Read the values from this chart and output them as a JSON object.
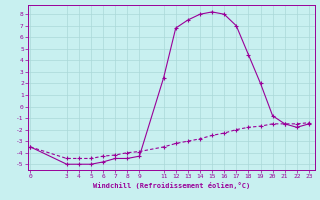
{
  "x": [
    0,
    3,
    4,
    5,
    6,
    7,
    8,
    9,
    11,
    12,
    13,
    14,
    15,
    16,
    17,
    18,
    19,
    20,
    21,
    22,
    23
  ],
  "y_curve": [
    -3.5,
    -5.0,
    -5.0,
    -5.0,
    -4.8,
    -4.5,
    -4.5,
    -4.3,
    2.5,
    6.8,
    7.5,
    8.0,
    8.2,
    8.0,
    7.0,
    4.5,
    2.0,
    -0.8,
    -1.5,
    -1.8,
    -1.5
  ],
  "y_line": [
    -3.5,
    -4.5,
    -4.5,
    -4.5,
    -4.3,
    -4.2,
    -4.0,
    -3.9,
    -3.5,
    -3.2,
    -3.0,
    -2.8,
    -2.5,
    -2.3,
    -2.0,
    -1.8,
    -1.7,
    -1.5,
    -1.5,
    -1.5,
    -1.4
  ],
  "line_color": "#990099",
  "bg_color": "#c8f0f0",
  "grid_color": "#aad8d8",
  "tick_color": "#990099",
  "xlabel": "Windchill (Refroidissement éolien,°C)",
  "yticks": [
    -5,
    -4,
    -3,
    -2,
    -1,
    0,
    1,
    2,
    3,
    4,
    5,
    6,
    7,
    8
  ],
  "xticks": [
    0,
    3,
    4,
    5,
    6,
    7,
    8,
    9,
    11,
    12,
    13,
    14,
    15,
    16,
    17,
    18,
    19,
    20,
    21,
    22,
    23
  ],
  "xlim": [
    -0.2,
    23.5
  ],
  "ylim": [
    -5.5,
    8.8
  ]
}
